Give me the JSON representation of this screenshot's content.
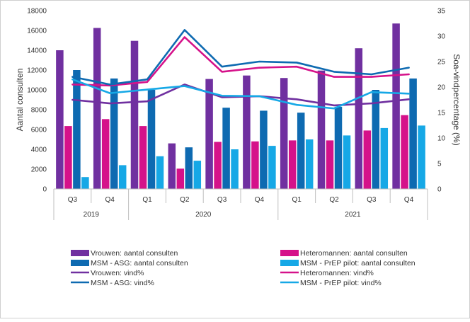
{
  "chart_data": {
    "type": "bar",
    "categories": [
      "Q3",
      "Q4",
      "Q1",
      "Q2",
      "Q3",
      "Q4",
      "Q1",
      "Q2",
      "Q3",
      "Q4"
    ],
    "years": [
      {
        "label": "2019",
        "start": 0,
        "end": 1
      },
      {
        "label": "2020",
        "start": 2,
        "end": 5
      },
      {
        "label": "2021",
        "start": 6,
        "end": 9
      }
    ],
    "ylabel": "Aantal consulten",
    "y2label": "Soa-vindpercentage (%)",
    "ylim": [
      0,
      18000
    ],
    "yticks": [
      "0",
      "2000",
      "4000",
      "6000",
      "8000",
      "10000",
      "12000",
      "14000",
      "16000",
      "18000"
    ],
    "y2lim": [
      0,
      35
    ],
    "y2ticks": [
      "0",
      "5",
      "10",
      "15",
      "20",
      "25",
      "30",
      "35"
    ],
    "bar_series": [
      {
        "name": "Vrouwen: aantal consulten",
        "color": "#7030a0",
        "values": [
          14000,
          16250,
          14950,
          4600,
          11100,
          11450,
          11200,
          11950,
          14200,
          16700
        ]
      },
      {
        "name": "Heteromannen: aantal consulten",
        "color": "#d5128a",
        "values": [
          6350,
          7050,
          6350,
          2050,
          4750,
          4800,
          4900,
          4900,
          5900,
          7450
        ]
      },
      {
        "name": "MSM - ASG: aantal consulten",
        "color": "#0e6ab1",
        "values": [
          12000,
          11150,
          10000,
          4200,
          8200,
          7900,
          7700,
          8300,
          10000,
          11150
        ]
      },
      {
        "name": "MSM - PrEP pilot: aantal consulten",
        "color": "#16a8e6",
        "values": [
          1200,
          2400,
          3300,
          2850,
          4000,
          4350,
          5000,
          5400,
          6150,
          6400
        ]
      }
    ],
    "line_series": [
      {
        "name": "Vrouwen: vind%",
        "color": "#7030a0",
        "values": [
          17.5,
          16.8,
          17.2,
          20.5,
          18.0,
          18.2,
          17.6,
          16.4,
          16.8,
          17.6
        ]
      },
      {
        "name": "Heteromannen: vind%",
        "color": "#d5128a",
        "values": [
          20.5,
          20.3,
          21.0,
          29.8,
          23.0,
          23.8,
          24.0,
          22.0,
          22.0,
          22.5
        ]
      },
      {
        "name": "MSM - ASG: vind%",
        "color": "#0e6ab1",
        "values": [
          22.0,
          20.5,
          21.5,
          31.2,
          24.0,
          25.0,
          24.8,
          23.0,
          22.5,
          23.8
        ]
      },
      {
        "name": "MSM - PrEP pilot: vind%",
        "color": "#16a8e6",
        "values": [
          21.5,
          18.8,
          19.5,
          20.2,
          18.3,
          18.2,
          16.5,
          15.8,
          19.0,
          18.7
        ]
      }
    ],
    "legend": {
      "placement": "bottom",
      "items": [
        "Vrouwen: aantal consulten",
        "Heteromannen: aantal consulten",
        "MSM - ASG: aantal consulten",
        "MSM - PrEP pilot: aantal consulten",
        "Vrouwen: vind%",
        "Heteromannen: vind%",
        "MSM - ASG: vind%",
        "MSM - PrEP pilot: vind%"
      ]
    },
    "grid": false
  }
}
